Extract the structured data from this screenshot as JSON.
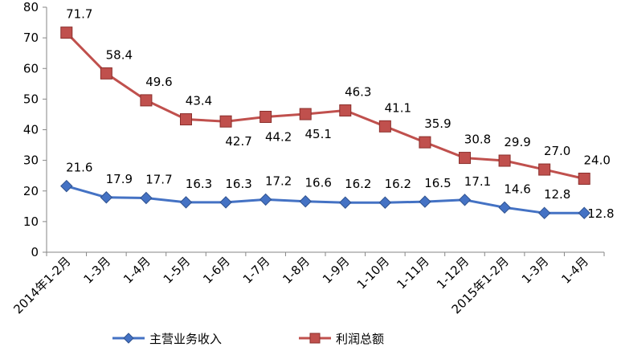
{
  "chart_data": {
    "type": "line",
    "title": "",
    "xlabel": "",
    "ylabel": "",
    "ylim": [
      0,
      80
    ],
    "yticks": [
      0,
      10,
      20,
      30,
      40,
      50,
      60,
      70,
      80
    ],
    "grid": false,
    "legend_position": "bottom",
    "categories": [
      "2014年1-2月",
      "1-3月",
      "1-4月",
      "1-5月",
      "1-6月",
      "1-7月",
      "1-8月",
      "1-9月",
      "1-10月",
      "1-11月",
      "1-12月",
      "2015年1-2月",
      "1-3月",
      "1-4月"
    ],
    "series": [
      {
        "name": "主营业务收入",
        "color": "#4472C4",
        "marker": "diamond",
        "values": [
          21.6,
          17.9,
          17.7,
          16.3,
          16.3,
          17.2,
          16.6,
          16.2,
          16.2,
          16.5,
          17.1,
          14.6,
          12.8,
          12.8
        ],
        "labels": [
          "21.6",
          "17.9",
          "17.7",
          "16.3",
          "16.3",
          "17.2",
          "16.6",
          "16.2",
          "16.2",
          "16.5",
          "17.1",
          "14.6",
          "12.8",
          "12.8"
        ]
      },
      {
        "name": "利润总额",
        "color": "#C0504D",
        "marker": "square",
        "values": [
          71.7,
          58.4,
          49.6,
          43.4,
          42.7,
          44.2,
          45.1,
          46.3,
          41.1,
          35.9,
          30.8,
          29.9,
          27.0,
          24.0
        ],
        "labels": [
          "71.7",
          "58.4",
          "49.6",
          "43.4",
          "42.7",
          "44.2",
          "45.1",
          "46.3",
          "41.1",
          "35.9",
          "30.8",
          "29.9",
          "27.0",
          "24.0"
        ]
      }
    ]
  }
}
